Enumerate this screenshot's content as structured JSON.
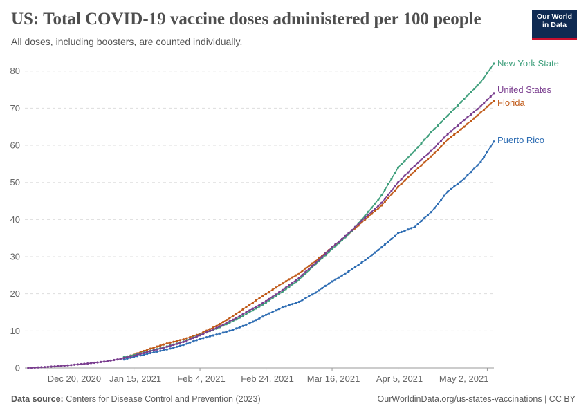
{
  "header": {
    "title": "US: Total COVID-19 vaccine doses administered per 100 people",
    "subtitle": "All doses, including boosters, are counted individually.",
    "logo_line1": "Our World",
    "logo_line2": "in Data"
  },
  "footer": {
    "source_label": "Data source:",
    "source_text": "Centers for Disease Control and Prevention (2023)",
    "link_text": "OurWorldinData.org/us-states-vaccinations",
    "license": "| CC BY"
  },
  "chart_data": {
    "type": "line",
    "title": "US: Total COVID-19 vaccine doses administered per 100 people",
    "subtitle": "All doses, including boosters, are counted individually.",
    "xlabel": "",
    "ylabel": "",
    "ylim": [
      0,
      82
    ],
    "xlim": [
      "2020-12-13",
      "2021-05-04"
    ],
    "yticks": [
      0,
      10,
      20,
      30,
      40,
      50,
      60,
      70,
      80
    ],
    "xticks": [
      {
        "date": "2020-12-20",
        "label": "Dec 20, 2020"
      },
      {
        "date": "2021-01-15",
        "label": "Jan 15, 2021"
      },
      {
        "date": "2021-02-04",
        "label": "Feb 4, 2021"
      },
      {
        "date": "2021-02-24",
        "label": "Feb 24, 2021"
      },
      {
        "date": "2021-03-16",
        "label": "Mar 16, 2021"
      },
      {
        "date": "2021-04-05",
        "label": "Apr 5, 2021"
      },
      {
        "date": "2021-05-02",
        "label": "May 2, 2021"
      }
    ],
    "grid": "horizontal-dashed",
    "legend": "labels at line ends, right",
    "series": [
      {
        "name": "New York State",
        "color": "#3f9f7c",
        "points": [
          [
            "2021-01-12",
            2.9
          ],
          [
            "2021-01-15",
            3.5
          ],
          [
            "2021-01-20",
            4.6
          ],
          [
            "2021-01-25",
            5.8
          ],
          [
            "2021-01-30",
            7.1
          ],
          [
            "2021-02-04",
            8.9
          ],
          [
            "2021-02-09",
            10.6
          ],
          [
            "2021-02-14",
            12.6
          ],
          [
            "2021-02-19",
            15.0
          ],
          [
            "2021-02-24",
            17.6
          ],
          [
            "2021-03-01",
            20.6
          ],
          [
            "2021-03-06",
            23.8
          ],
          [
            "2021-03-11",
            28.0
          ],
          [
            "2021-03-16",
            32.0
          ],
          [
            "2021-03-21",
            36.0
          ],
          [
            "2021-03-26",
            41.0
          ],
          [
            "2021-03-31",
            46.5
          ],
          [
            "2021-04-05",
            54.0
          ],
          [
            "2021-04-10",
            58.5
          ],
          [
            "2021-04-15",
            63.5
          ],
          [
            "2021-04-20",
            68.0
          ],
          [
            "2021-04-25",
            72.5
          ],
          [
            "2021-04-30",
            77.0
          ],
          [
            "2021-05-04",
            82.0
          ]
        ]
      },
      {
        "name": "United States",
        "color": "#7a3e8f",
        "points": [
          [
            "2020-12-14",
            0.0
          ],
          [
            "2020-12-20",
            0.3
          ],
          [
            "2020-12-26",
            0.7
          ],
          [
            "2021-01-01",
            1.2
          ],
          [
            "2021-01-06",
            1.7
          ],
          [
            "2021-01-10",
            2.3
          ],
          [
            "2021-01-15",
            3.3
          ],
          [
            "2021-01-20",
            4.5
          ],
          [
            "2021-01-25",
            5.7
          ],
          [
            "2021-01-30",
            7.0
          ],
          [
            "2021-02-04",
            8.8
          ],
          [
            "2021-02-09",
            10.8
          ],
          [
            "2021-02-14",
            13.0
          ],
          [
            "2021-02-19",
            15.5
          ],
          [
            "2021-02-24",
            18.0
          ],
          [
            "2021-03-01",
            21.0
          ],
          [
            "2021-03-06",
            24.3
          ],
          [
            "2021-03-11",
            28.3
          ],
          [
            "2021-03-16",
            32.5
          ],
          [
            "2021-03-21",
            36.3
          ],
          [
            "2021-03-26",
            40.5
          ],
          [
            "2021-03-31",
            44.5
          ],
          [
            "2021-04-05",
            50.0
          ],
          [
            "2021-04-10",
            54.5
          ],
          [
            "2021-04-15",
            58.5
          ],
          [
            "2021-04-20",
            63.0
          ],
          [
            "2021-04-25",
            66.8
          ],
          [
            "2021-04-30",
            70.5
          ],
          [
            "2021-05-04",
            74.0
          ]
        ]
      },
      {
        "name": "Florida",
        "color": "#c05917",
        "points": [
          [
            "2021-01-12",
            2.8
          ],
          [
            "2021-01-15",
            3.6
          ],
          [
            "2021-01-20",
            5.2
          ],
          [
            "2021-01-25",
            6.6
          ],
          [
            "2021-01-30",
            7.7
          ],
          [
            "2021-02-04",
            9.2
          ],
          [
            "2021-02-09",
            11.3
          ],
          [
            "2021-02-14",
            14.0
          ],
          [
            "2021-02-19",
            17.0
          ],
          [
            "2021-02-24",
            20.0
          ],
          [
            "2021-03-01",
            22.8
          ],
          [
            "2021-03-06",
            25.5
          ],
          [
            "2021-03-11",
            28.8
          ],
          [
            "2021-03-16",
            32.5
          ],
          [
            "2021-03-21",
            36.0
          ],
          [
            "2021-03-26",
            40.0
          ],
          [
            "2021-03-31",
            43.8
          ],
          [
            "2021-04-05",
            48.8
          ],
          [
            "2021-04-10",
            53.0
          ],
          [
            "2021-04-15",
            57.0
          ],
          [
            "2021-04-20",
            61.5
          ],
          [
            "2021-04-25",
            65.0
          ],
          [
            "2021-04-30",
            68.8
          ],
          [
            "2021-05-04",
            72.0
          ]
        ]
      },
      {
        "name": "Puerto Rico",
        "color": "#2e6db3",
        "points": [
          [
            "2021-01-12",
            2.3
          ],
          [
            "2021-01-15",
            3.0
          ],
          [
            "2021-01-20",
            4.0
          ],
          [
            "2021-01-25",
            5.0
          ],
          [
            "2021-01-30",
            6.2
          ],
          [
            "2021-02-04",
            7.8
          ],
          [
            "2021-02-09",
            9.0
          ],
          [
            "2021-02-14",
            10.3
          ],
          [
            "2021-02-19",
            12.0
          ],
          [
            "2021-02-24",
            14.3
          ],
          [
            "2021-03-01",
            16.3
          ],
          [
            "2021-03-06",
            17.8
          ],
          [
            "2021-03-11",
            20.3
          ],
          [
            "2021-03-16",
            23.3
          ],
          [
            "2021-03-21",
            26.0
          ],
          [
            "2021-03-26",
            29.0
          ],
          [
            "2021-03-31",
            32.5
          ],
          [
            "2021-04-05",
            36.3
          ],
          [
            "2021-04-10",
            38.0
          ],
          [
            "2021-04-15",
            42.0
          ],
          [
            "2021-04-20",
            47.5
          ],
          [
            "2021-04-25",
            51.0
          ],
          [
            "2021-04-30",
            55.5
          ],
          [
            "2021-05-04",
            61.0
          ]
        ]
      }
    ]
  }
}
